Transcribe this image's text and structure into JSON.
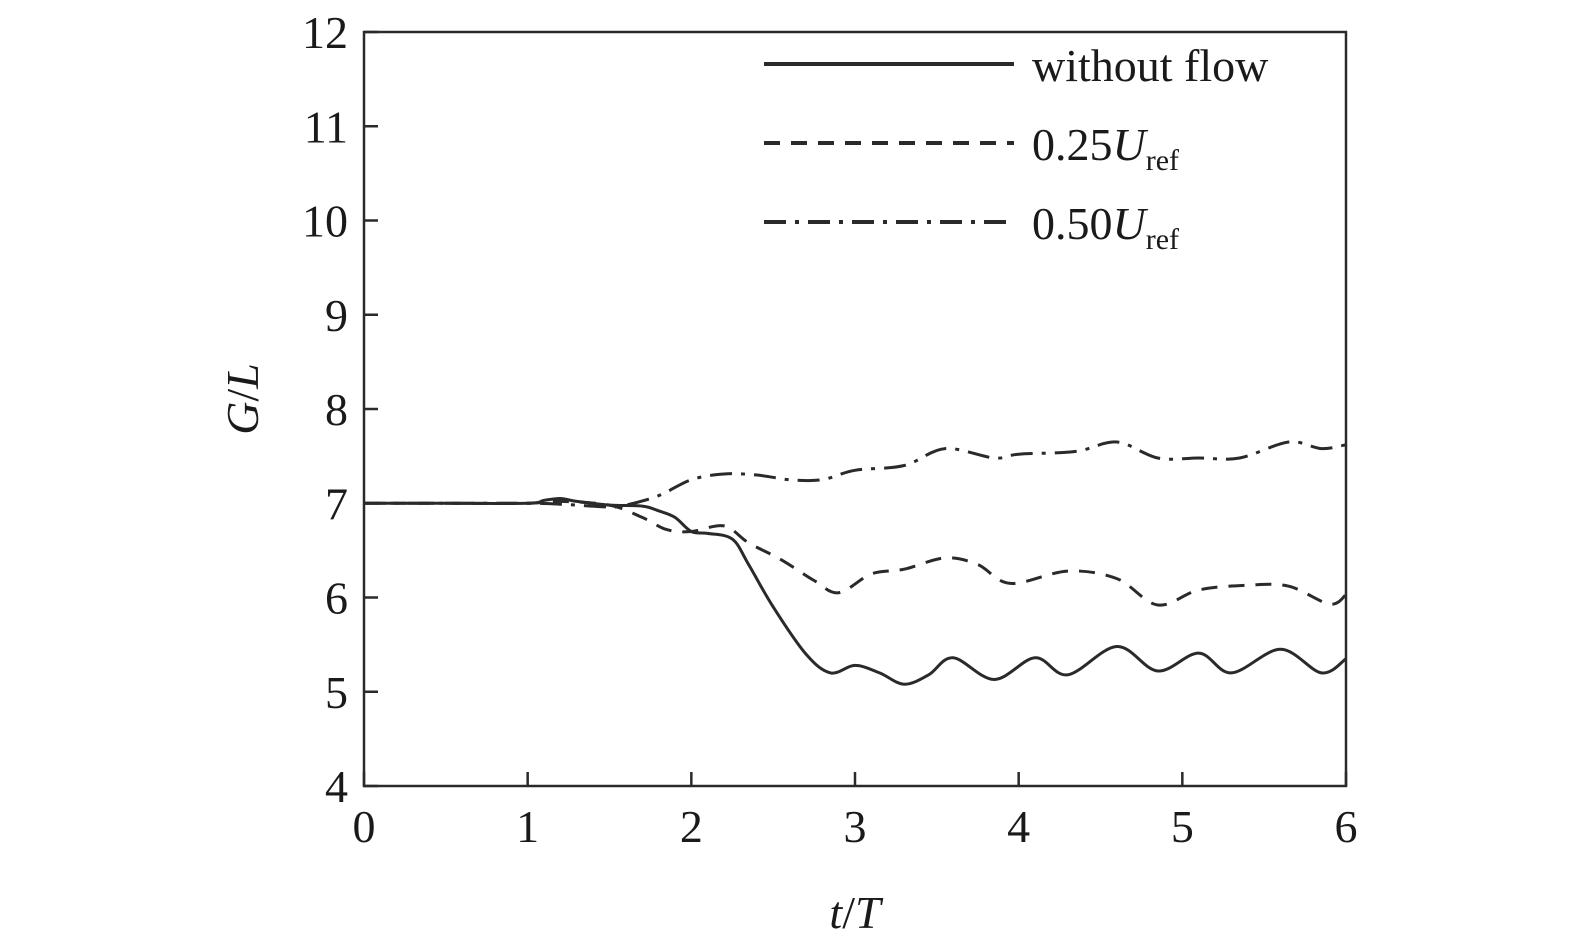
{
  "chart_data": {
    "type": "line",
    "xlabel": {
      "numerator": "t",
      "slash": "/",
      "denominator": "T"
    },
    "ylabel": {
      "numerator": "G",
      "slash": "/",
      "denominator": "L"
    },
    "xlim": [
      0,
      6
    ],
    "ylim": [
      4,
      12
    ],
    "x_ticks": [
      "0",
      "1",
      "2",
      "3",
      "4",
      "5",
      "6"
    ],
    "y_ticks": [
      "4",
      "5",
      "6",
      "7",
      "8",
      "9",
      "10",
      "11",
      "12"
    ],
    "grid": false,
    "legend_position": "top-right",
    "line_color": "#2a2a2a",
    "series": [
      {
        "name": "without flow",
        "style": "solid",
        "x": [
          0,
          0.5,
          1.0,
          1.1,
          1.2,
          1.3,
          1.5,
          1.7,
          1.8,
          1.9,
          2.0,
          2.1,
          2.25,
          2.35,
          2.5,
          2.7,
          2.85,
          3.0,
          3.15,
          3.3,
          3.45,
          3.6,
          3.85,
          4.1,
          4.3,
          4.6,
          4.85,
          5.1,
          5.3,
          5.6,
          5.85,
          6.0
        ],
        "y": [
          7.0,
          7.0,
          7.0,
          7.03,
          7.05,
          7.02,
          6.98,
          6.97,
          6.92,
          6.85,
          6.7,
          6.68,
          6.62,
          6.35,
          5.9,
          5.4,
          5.2,
          5.28,
          5.2,
          5.08,
          5.18,
          5.36,
          5.13,
          5.36,
          5.18,
          5.48,
          5.22,
          5.41,
          5.2,
          5.45,
          5.2,
          5.35
        ]
      },
      {
        "name": "0.25U_ref",
        "label_main": "0.25",
        "label_italic": "U",
        "label_sub": "ref",
        "style": "dashed",
        "x": [
          0,
          0.5,
          1.0,
          1.2,
          1.5,
          1.7,
          1.85,
          2.0,
          2.2,
          2.35,
          2.55,
          2.75,
          2.9,
          3.1,
          3.3,
          3.55,
          3.75,
          3.95,
          4.3,
          4.6,
          4.85,
          5.1,
          5.4,
          5.65,
          5.9,
          6.0
        ],
        "y": [
          7.0,
          7.0,
          7.0,
          7.02,
          6.98,
          6.85,
          6.72,
          6.7,
          6.76,
          6.58,
          6.4,
          6.18,
          6.05,
          6.25,
          6.3,
          6.42,
          6.35,
          6.15,
          6.28,
          6.2,
          5.92,
          6.08,
          6.13,
          6.12,
          5.93,
          6.03
        ]
      },
      {
        "name": "0.50U_ref",
        "label_main": "0.50",
        "label_italic": "U",
        "label_sub": "ref",
        "style": "dash-dot",
        "x": [
          0,
          0.5,
          1.0,
          1.2,
          1.5,
          1.6,
          1.8,
          2.0,
          2.2,
          2.4,
          2.6,
          2.8,
          3.0,
          3.3,
          3.55,
          3.85,
          4.0,
          4.35,
          4.6,
          4.85,
          5.1,
          5.35,
          5.65,
          5.85,
          6.0
        ],
        "y": [
          7.0,
          7.0,
          7.0,
          6.99,
          6.96,
          6.98,
          7.08,
          7.25,
          7.31,
          7.3,
          7.25,
          7.25,
          7.35,
          7.4,
          7.58,
          7.48,
          7.52,
          7.55,
          7.65,
          7.48,
          7.48,
          7.48,
          7.65,
          7.58,
          7.62
        ]
      }
    ]
  }
}
